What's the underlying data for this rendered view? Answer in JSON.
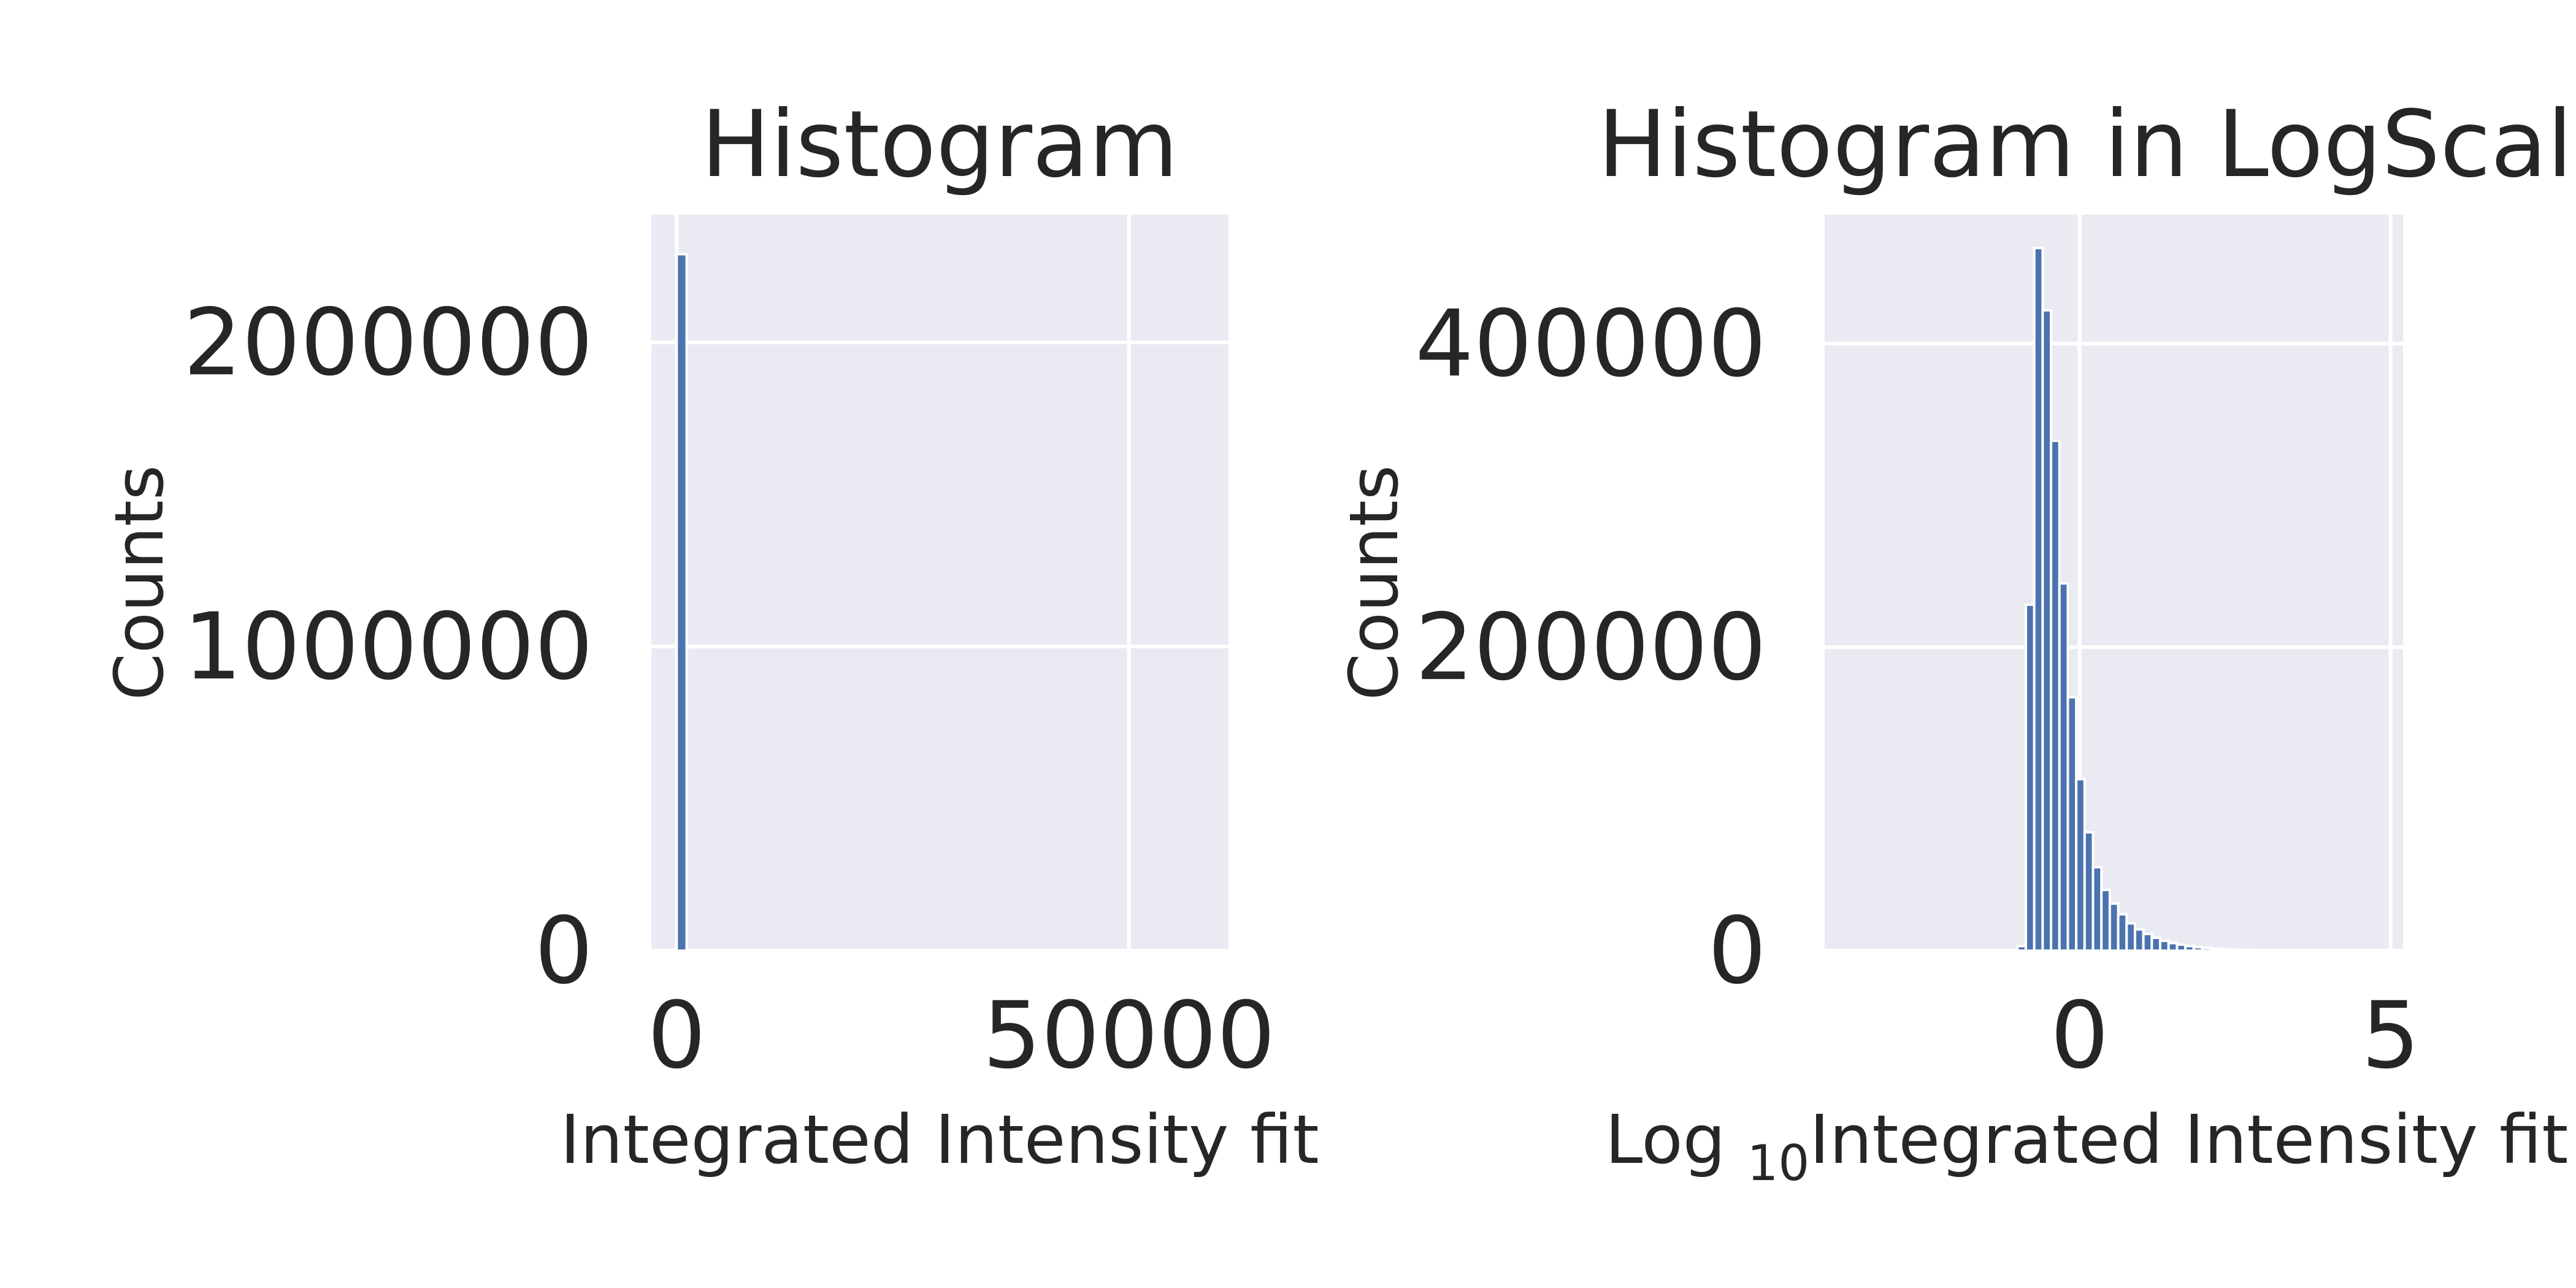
{
  "chart_data": [
    {
      "type": "bar",
      "title": "Histogram",
      "xlabel": "Integrated Intensity fit",
      "ylabel": "Counts",
      "xlim": [
        -2800,
        61000
      ],
      "ylim": [
        0,
        2420000
      ],
      "xticks": [
        0,
        50000
      ],
      "yticks": [
        0,
        1000000,
        2000000
      ],
      "xtick_labels": [
        "0",
        "50000"
      ],
      "ytick_labels": [
        "0",
        "1000000",
        "2000000"
      ],
      "grid": true,
      "bar_color": "#4c72b0",
      "bins": [
        {
          "x0": 0,
          "x1": 1100,
          "count": 2290000
        }
      ]
    },
    {
      "type": "bar",
      "title": "Histogram in LogScale",
      "xlabel_prefix": "Log ",
      "xlabel_subscript": "10",
      "xlabel_main": "Integrated Intensity fit",
      "ylabel": "Counts",
      "xlim": [
        -4.1,
        5.2
      ],
      "ylim": [
        0,
        485000
      ],
      "xticks": [
        0,
        5
      ],
      "yticks": [
        0,
        200000,
        400000
      ],
      "xtick_labels": [
        "0",
        "5"
      ],
      "ytick_labels": [
        "0",
        "200000",
        "400000"
      ],
      "grid": true,
      "bar_color": "#4c72b0",
      "bin_start": -1.0,
      "bin_width": 0.135,
      "counts": [
        3000,
        228000,
        463000,
        422000,
        336000,
        242000,
        167000,
        113000,
        78000,
        55000,
        40000,
        31000,
        24000,
        18000,
        14000,
        11000,
        8500,
        6500,
        5000,
        4000,
        3000,
        2300,
        1800,
        1400,
        1100,
        850,
        650,
        500,
        380,
        290,
        220,
        170,
        130,
        100,
        80,
        60,
        45,
        35,
        25
      ]
    }
  ]
}
